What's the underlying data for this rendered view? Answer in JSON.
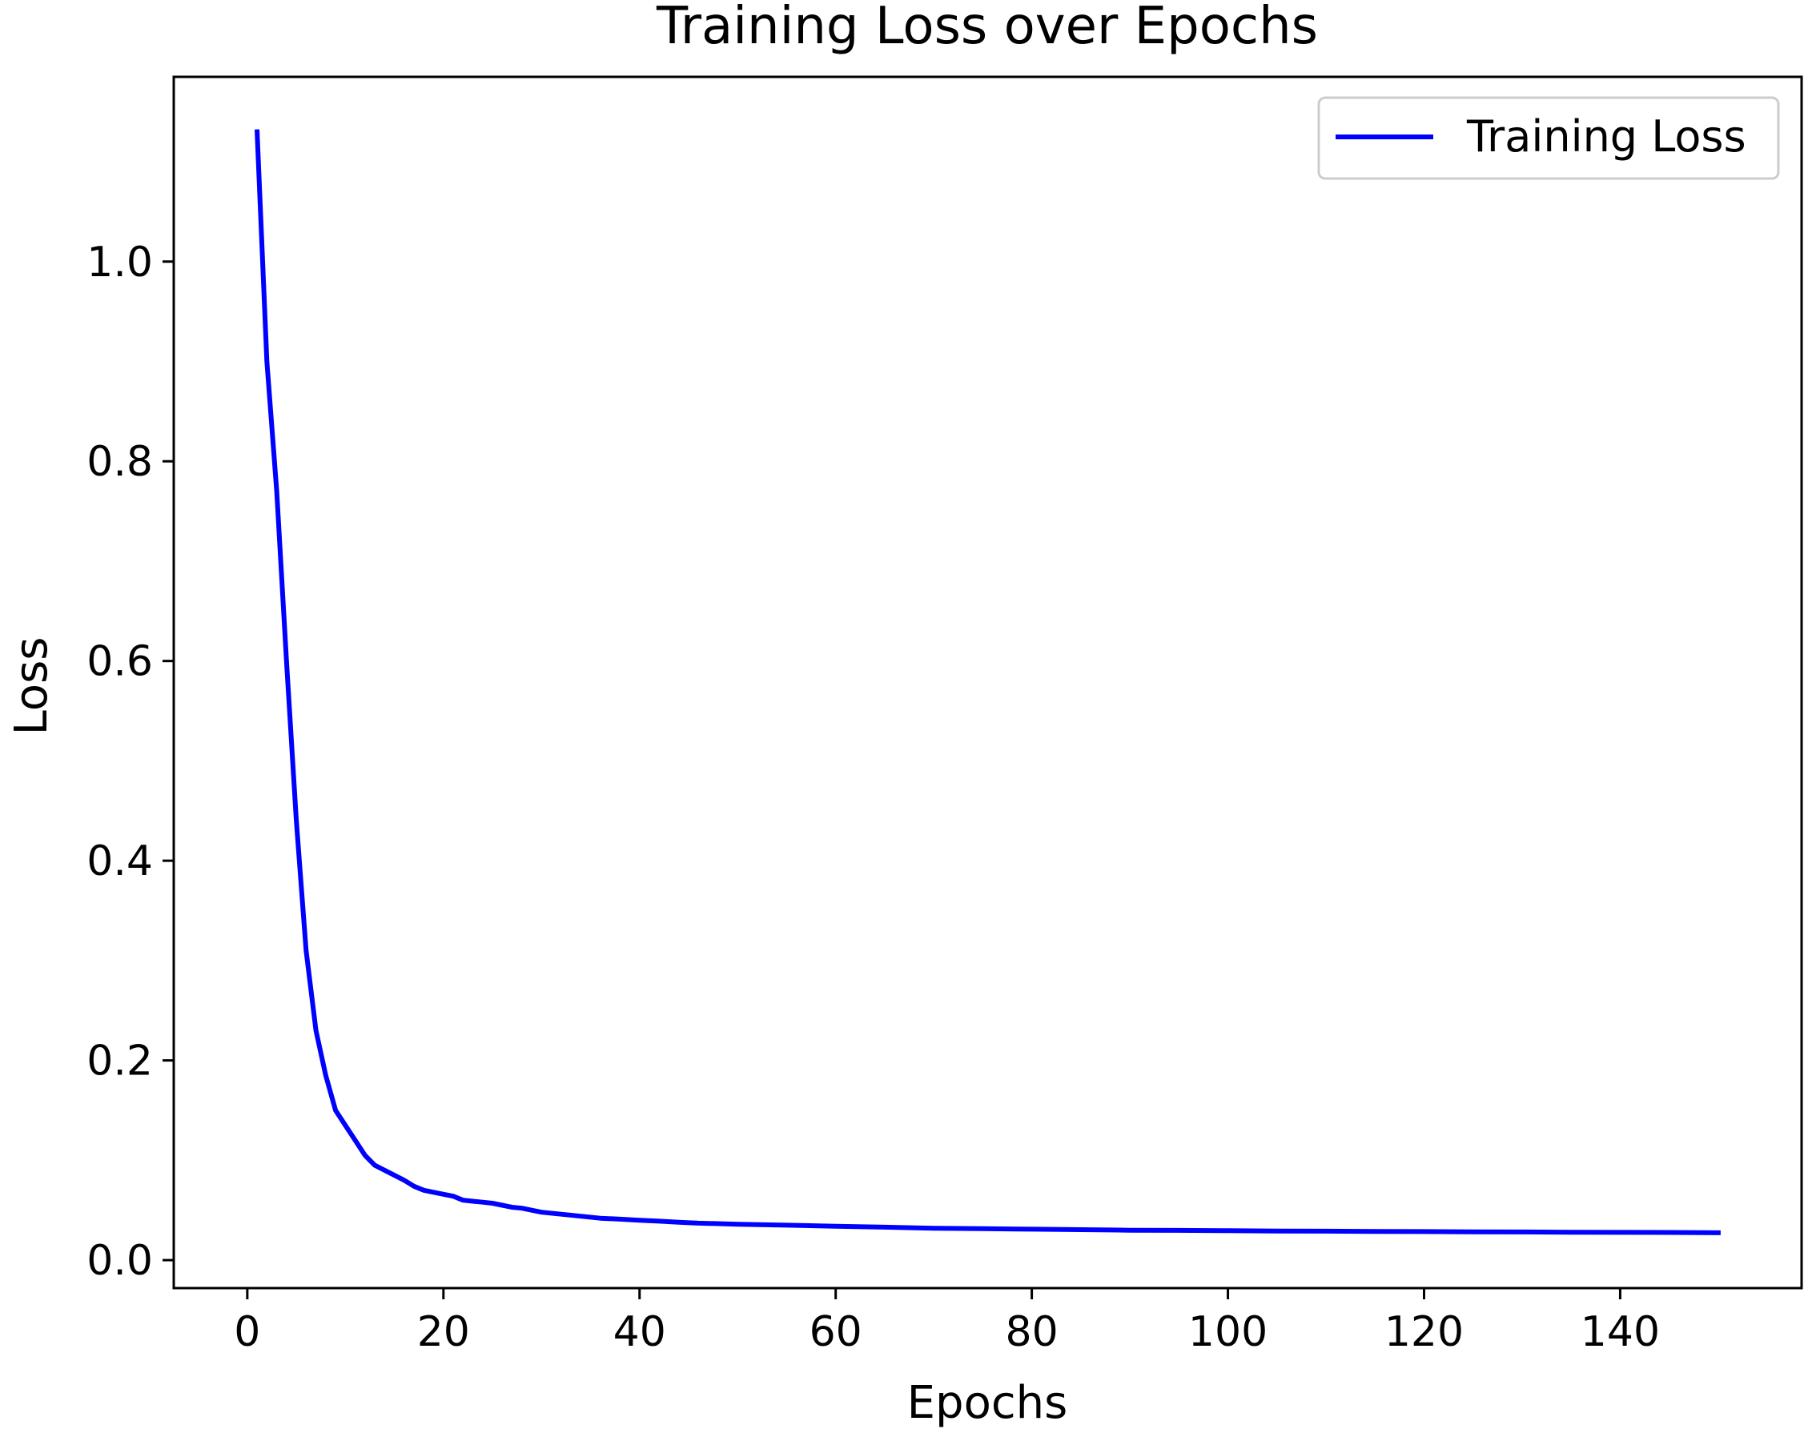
{
  "chart_data": {
    "type": "line",
    "title": "Training Loss over Epochs",
    "xlabel": "Epochs",
    "ylabel": "Loss",
    "xlim": [
      -7.5,
      158.5
    ],
    "ylim": [
      -0.028,
      1.185
    ],
    "x_ticks": [
      0,
      20,
      40,
      60,
      80,
      100,
      120,
      140
    ],
    "x_tick_labels": [
      "0",
      "20",
      "40",
      "60",
      "80",
      "100",
      "120",
      "140"
    ],
    "y_ticks": [
      0.0,
      0.2,
      0.4,
      0.6,
      0.8,
      1.0
    ],
    "y_tick_labels": [
      "0.0",
      "0.2",
      "0.4",
      "0.6",
      "0.8",
      "1.0"
    ],
    "grid": false,
    "legend_position": "top-right",
    "series": [
      {
        "name": "Training Loss",
        "color": "#0000ff",
        "x": [
          1,
          2,
          3,
          4,
          5,
          6,
          7,
          8,
          9,
          10,
          11,
          12,
          13,
          14,
          15,
          16,
          17,
          18,
          19,
          20,
          21,
          22,
          23,
          24,
          25,
          26,
          27,
          28,
          29,
          30,
          32,
          34,
          36,
          38,
          40,
          42,
          44,
          46,
          48,
          50,
          55,
          60,
          65,
          70,
          75,
          80,
          85,
          90,
          95,
          100,
          105,
          110,
          115,
          120,
          125,
          130,
          135,
          140,
          145,
          150
        ],
        "y": [
          1.13,
          0.9,
          0.77,
          0.6,
          0.44,
          0.31,
          0.23,
          0.185,
          0.15,
          0.135,
          0.12,
          0.105,
          0.095,
          0.09,
          0.085,
          0.08,
          0.074,
          0.07,
          0.068,
          0.066,
          0.064,
          0.06,
          0.059,
          0.058,
          0.057,
          0.055,
          0.053,
          0.052,
          0.05,
          0.048,
          0.046,
          0.044,
          0.042,
          0.041,
          0.04,
          0.039,
          0.038,
          0.037,
          0.0365,
          0.036,
          0.035,
          0.034,
          0.033,
          0.032,
          0.0315,
          0.031,
          0.0305,
          0.03,
          0.0298,
          0.0295,
          0.0292,
          0.029,
          0.0288,
          0.0286,
          0.0284,
          0.0282,
          0.028,
          0.0278,
          0.0277,
          0.0275
        ]
      }
    ]
  }
}
